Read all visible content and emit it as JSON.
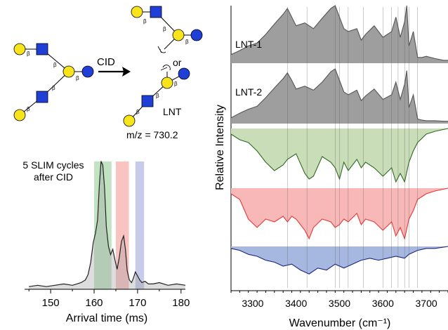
{
  "diagram": {
    "cid_label": "CID",
    "or_label": "or",
    "lnt_label": "LNT",
    "mz_label": "m/z = 730.2",
    "beta": "β",
    "colors": {
      "galactose": "#f7e41a",
      "glcnac": "#1f3fd6",
      "glucose": "#1f3fd6"
    }
  },
  "chart_data": [
    {
      "type": "area",
      "id": "arrival",
      "annotation_lines": [
        "5 SLIM cycles",
        "after CID"
      ],
      "xlabel": "Arrival time (ms)",
      "ylabel": "",
      "xlim": [
        144,
        181
      ],
      "ylim": [
        0,
        1
      ],
      "xticks": [
        150,
        160,
        170,
        180
      ],
      "highlight_bands": [
        {
          "range": [
            160,
            164
          ],
          "color": "#4caf50"
        },
        {
          "range": [
            165,
            168
          ],
          "color": "#ef5350"
        },
        {
          "range": [
            169.5,
            171.5
          ],
          "color": "#5c6bc0"
        }
      ],
      "series": [
        {
          "color": "#222222",
          "x": [
            145,
            147,
            149,
            151,
            153,
            155,
            156,
            157,
            158,
            158.6,
            159.2,
            159.8,
            160.3,
            160.8,
            161.2,
            161.6,
            162.0,
            162.4,
            162.8,
            163.3,
            163.8,
            164.3,
            164.8,
            165.3,
            165.8,
            166.3,
            166.8,
            167.2,
            167.6,
            168.1,
            168.6,
            169.0,
            169.5,
            170.0,
            170.5,
            171.0,
            171.7,
            172.5,
            173.5,
            175,
            177,
            179,
            181
          ],
          "y": [
            0.02,
            0.03,
            0.02,
            0.03,
            0.04,
            0.03,
            0.04,
            0.05,
            0.07,
            0.11,
            0.2,
            0.35,
            0.42,
            0.52,
            0.78,
            0.96,
            0.93,
            0.76,
            0.47,
            0.32,
            0.26,
            0.3,
            0.22,
            0.15,
            0.24,
            0.36,
            0.4,
            0.3,
            0.14,
            0.07,
            0.05,
            0.08,
            0.13,
            0.1,
            0.07,
            0.05,
            0.06,
            0.04,
            0.04,
            0.05,
            0.03,
            0.04,
            0.03
          ]
        }
      ]
    },
    {
      "type": "line",
      "id": "ir-spectra",
      "xlabel": "Wavenumber (cm⁻¹)",
      "ylabel": "Relative Intensity",
      "xlim": [
        3250,
        3750
      ],
      "xticks": [
        3300,
        3400,
        3500,
        3600,
        3700
      ],
      "reference_lines": [
        3380,
        3425,
        3490,
        3500,
        3520,
        3555,
        3600,
        3620,
        3635,
        3650,
        3660,
        3680
      ],
      "series": [
        {
          "name": "LNT-1",
          "color": "#555555",
          "fill": "#9e9e9e",
          "direction": "up",
          "x": [
            3250,
            3270,
            3290,
            3310,
            3330,
            3350,
            3370,
            3380,
            3390,
            3400,
            3420,
            3440,
            3460,
            3480,
            3490,
            3500,
            3510,
            3520,
            3540,
            3550,
            3560,
            3580,
            3600,
            3620,
            3630,
            3640,
            3650,
            3655,
            3660,
            3670,
            3680,
            3690,
            3700,
            3720,
            3740,
            3750
          ],
          "y": [
            0.15,
            0.22,
            0.3,
            0.35,
            0.5,
            0.68,
            0.85,
            0.95,
            0.8,
            0.65,
            0.7,
            0.6,
            0.78,
            0.95,
            1.0,
            0.8,
            0.6,
            0.55,
            0.6,
            0.4,
            0.5,
            0.65,
            0.45,
            0.55,
            0.8,
            0.45,
            0.72,
            1.0,
            0.3,
            0.55,
            0.1,
            0.1,
            0.12,
            0.08,
            0.05,
            0.05
          ]
        },
        {
          "name": "LNT-2",
          "color": "#555555",
          "fill": "#9e9e9e",
          "direction": "up",
          "x": [
            3250,
            3270,
            3290,
            3310,
            3330,
            3350,
            3370,
            3380,
            3390,
            3400,
            3420,
            3440,
            3460,
            3480,
            3490,
            3500,
            3510,
            3520,
            3540,
            3550,
            3560,
            3580,
            3600,
            3620,
            3630,
            3640,
            3650,
            3655,
            3660,
            3670,
            3680,
            3690,
            3700,
            3720,
            3740,
            3750
          ],
          "y": [
            0.1,
            0.18,
            0.25,
            0.3,
            0.45,
            0.62,
            0.78,
            0.88,
            0.75,
            0.6,
            0.65,
            0.58,
            0.72,
            0.9,
            0.95,
            0.75,
            0.55,
            0.5,
            0.58,
            0.4,
            0.48,
            0.6,
            0.42,
            0.5,
            0.72,
            0.42,
            0.68,
            0.92,
            0.28,
            0.5,
            0.08,
            0.06,
            0.05,
            0.05,
            0.04,
            0.04
          ]
        },
        {
          "name": "",
          "color": "#2e6b1f",
          "fill": "#c8ddb8",
          "direction": "down",
          "x": [
            3250,
            3270,
            3290,
            3310,
            3330,
            3350,
            3370,
            3380,
            3390,
            3400,
            3420,
            3430,
            3440,
            3460,
            3480,
            3490,
            3500,
            3510,
            3520,
            3540,
            3550,
            3560,
            3580,
            3600,
            3620,
            3630,
            3640,
            3650,
            3660,
            3670,
            3680,
            3700,
            3720,
            3750
          ],
          "y": [
            0.1,
            0.2,
            0.25,
            0.4,
            0.6,
            0.75,
            0.65,
            0.55,
            0.5,
            0.45,
            0.8,
            0.9,
            0.85,
            0.5,
            0.6,
            0.7,
            0.9,
            0.6,
            0.75,
            0.55,
            0.7,
            0.6,
            0.7,
            0.85,
            0.7,
            0.95,
            0.8,
            0.95,
            0.6,
            0.4,
            0.25,
            0.1,
            0.05,
            0.0
          ]
        },
        {
          "name": "",
          "color": "#e53935",
          "fill": "#f9b8b8",
          "direction": "down",
          "x": [
            3250,
            3270,
            3290,
            3310,
            3330,
            3350,
            3370,
            3380,
            3390,
            3400,
            3420,
            3430,
            3440,
            3460,
            3480,
            3490,
            3500,
            3510,
            3520,
            3540,
            3550,
            3560,
            3580,
            3600,
            3620,
            3630,
            3640,
            3650,
            3660,
            3670,
            3680,
            3700,
            3720,
            3750
          ],
          "y": [
            0.1,
            0.2,
            0.55,
            0.7,
            0.55,
            0.6,
            0.5,
            0.6,
            0.5,
            0.55,
            0.75,
            0.9,
            0.7,
            0.55,
            0.6,
            0.7,
            0.65,
            0.55,
            0.6,
            0.45,
            0.65,
            0.55,
            0.6,
            0.75,
            0.6,
            0.85,
            0.7,
            0.9,
            0.55,
            0.4,
            0.2,
            0.1,
            0.05,
            0.0
          ]
        },
        {
          "name": "",
          "color": "#1a237e",
          "fill": "#a6b8df",
          "direction": "down",
          "x": [
            3250,
            3270,
            3290,
            3310,
            3330,
            3350,
            3370,
            3390,
            3410,
            3430,
            3450,
            3470,
            3490,
            3510,
            3530,
            3550,
            3570,
            3590,
            3610,
            3630,
            3650,
            3660,
            3670,
            3680,
            3700,
            3720,
            3750
          ],
          "y": [
            0.05,
            0.1,
            0.2,
            0.25,
            0.35,
            0.4,
            0.5,
            0.45,
            0.6,
            0.7,
            0.55,
            0.6,
            0.45,
            0.55,
            0.45,
            0.35,
            0.3,
            0.35,
            0.3,
            0.25,
            0.3,
            0.2,
            0.15,
            0.1,
            0.05,
            0.05,
            0.0
          ]
        }
      ]
    }
  ]
}
